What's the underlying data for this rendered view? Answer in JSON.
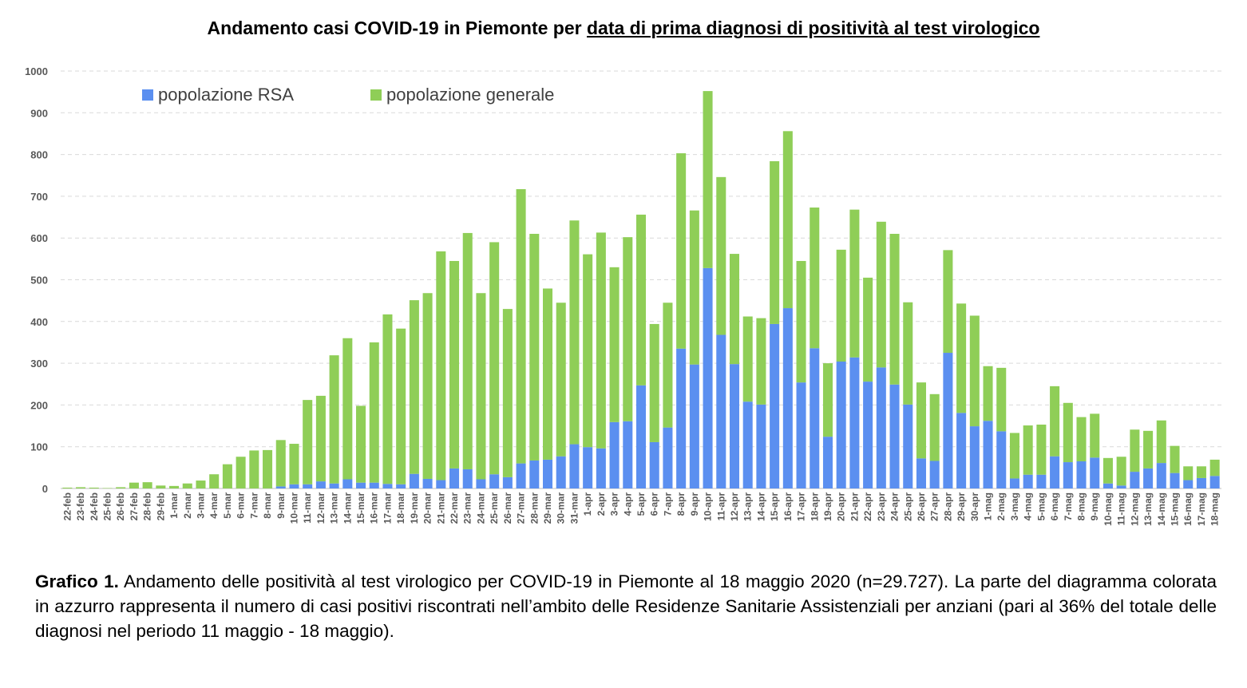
{
  "title": {
    "part1": "Andamento casi COVID-19 in Piemonte per ",
    "part2": "data di prima diagnosi di positività al test virologico"
  },
  "caption": {
    "label": "Grafico 1.",
    "text": " Andamento delle positività al test virologico per COVID-19 in Piemonte al 18 maggio 2020 (n=29.727). La parte del diagramma colorata in azzurro rappresenta il numero di casi positivi riscontrati nell’ambito delle Residenze Sanitarie Assistenziali per anziani (pari al 36% del totale delle diagnosi nel periodo 11 maggio - 18 maggio)."
  },
  "chart_data": {
    "type": "bar",
    "stacked": true,
    "ylim": [
      0,
      1000
    ],
    "yticks": [
      0,
      100,
      200,
      300,
      400,
      500,
      600,
      700,
      800,
      900,
      1000
    ],
    "grid": "horizontal dashed",
    "legend_position": "top-left",
    "categories": [
      "22-feb",
      "23-feb",
      "24-feb",
      "25-feb",
      "26-feb",
      "27-feb",
      "28-feb",
      "29-feb",
      "1-mar",
      "2-mar",
      "3-mar",
      "4-mar",
      "5-mar",
      "6-mar",
      "7-mar",
      "8-mar",
      "9-mar",
      "10-mar",
      "11-mar",
      "12-mar",
      "13-mar",
      "14-mar",
      "15-mar",
      "16-mar",
      "17-mar",
      "18-mar",
      "19-mar",
      "20-mar",
      "21-mar",
      "22-mar",
      "23-mar",
      "24-mar",
      "25-mar",
      "26-mar",
      "27-mar",
      "28-mar",
      "29-mar",
      "30-mar",
      "31-mar",
      "1-apr",
      "2-apr",
      "3-apr",
      "4-apr",
      "5-apr",
      "6-apr",
      "7-apr",
      "8-apr",
      "9-apr",
      "10-apr",
      "11-apr",
      "12-apr",
      "13-apr",
      "14-apr",
      "15-apr",
      "16-apr",
      "17-apr",
      "18-apr",
      "19-apr",
      "20-apr",
      "21-apr",
      "22-apr",
      "23-apr",
      "24-apr",
      "25-apr",
      "26-apr",
      "27-apr",
      "28-apr",
      "29-apr",
      "30-apr",
      "1-mag",
      "2-mag",
      "3-mag",
      "4-mag",
      "5-mag",
      "6-mag",
      "7-mag",
      "8-mag",
      "9-mag",
      "10-mag",
      "11-mag",
      "12-mag",
      "13-mag",
      "14-mag",
      "15-mag",
      "16-mag",
      "17-mag",
      "18-mag"
    ],
    "series": [
      {
        "name": "popolazione RSA",
        "color": "#5b8ff0",
        "values": [
          0,
          0,
          0,
          0,
          0,
          0,
          0,
          0,
          0,
          0,
          0,
          0,
          0,
          0,
          0,
          0,
          5,
          10,
          10,
          17,
          12,
          22,
          14,
          14,
          11,
          10,
          35,
          23,
          20,
          48,
          46,
          22,
          34,
          27,
          60,
          67,
          69,
          77,
          106,
          99,
          96,
          159,
          161,
          247,
          111,
          146,
          335,
          297,
          528,
          368,
          298,
          208,
          201,
          394,
          432,
          254,
          336,
          124,
          304,
          314,
          256,
          290,
          249,
          201,
          72,
          66,
          325,
          181,
          149,
          162,
          137,
          24,
          33,
          33,
          77,
          63,
          65,
          74,
          12,
          7,
          40,
          48,
          61,
          37,
          20,
          25,
          30
        ]
      },
      {
        "name": "popolazione generale",
        "color": "#8fce57",
        "values": [
          2,
          3,
          2,
          1,
          3,
          14,
          15,
          7,
          6,
          12,
          19,
          34,
          58,
          76,
          91,
          92,
          111,
          97,
          202,
          205,
          307,
          338,
          184,
          336,
          406,
          373,
          416,
          445,
          548,
          497,
          566,
          446,
          556,
          403,
          657,
          543,
          410,
          368,
          536,
          462,
          517,
          371,
          441,
          409,
          283,
          299,
          468,
          369,
          424,
          378,
          264,
          204,
          207,
          390,
          424,
          291,
          337,
          176,
          268,
          354,
          249,
          349,
          361,
          245,
          182,
          160,
          246,
          262,
          265,
          131,
          152,
          109,
          118,
          120,
          168,
          142,
          106,
          105,
          61,
          69,
          101,
          90,
          102,
          65,
          33,
          28,
          39
        ]
      }
    ]
  }
}
